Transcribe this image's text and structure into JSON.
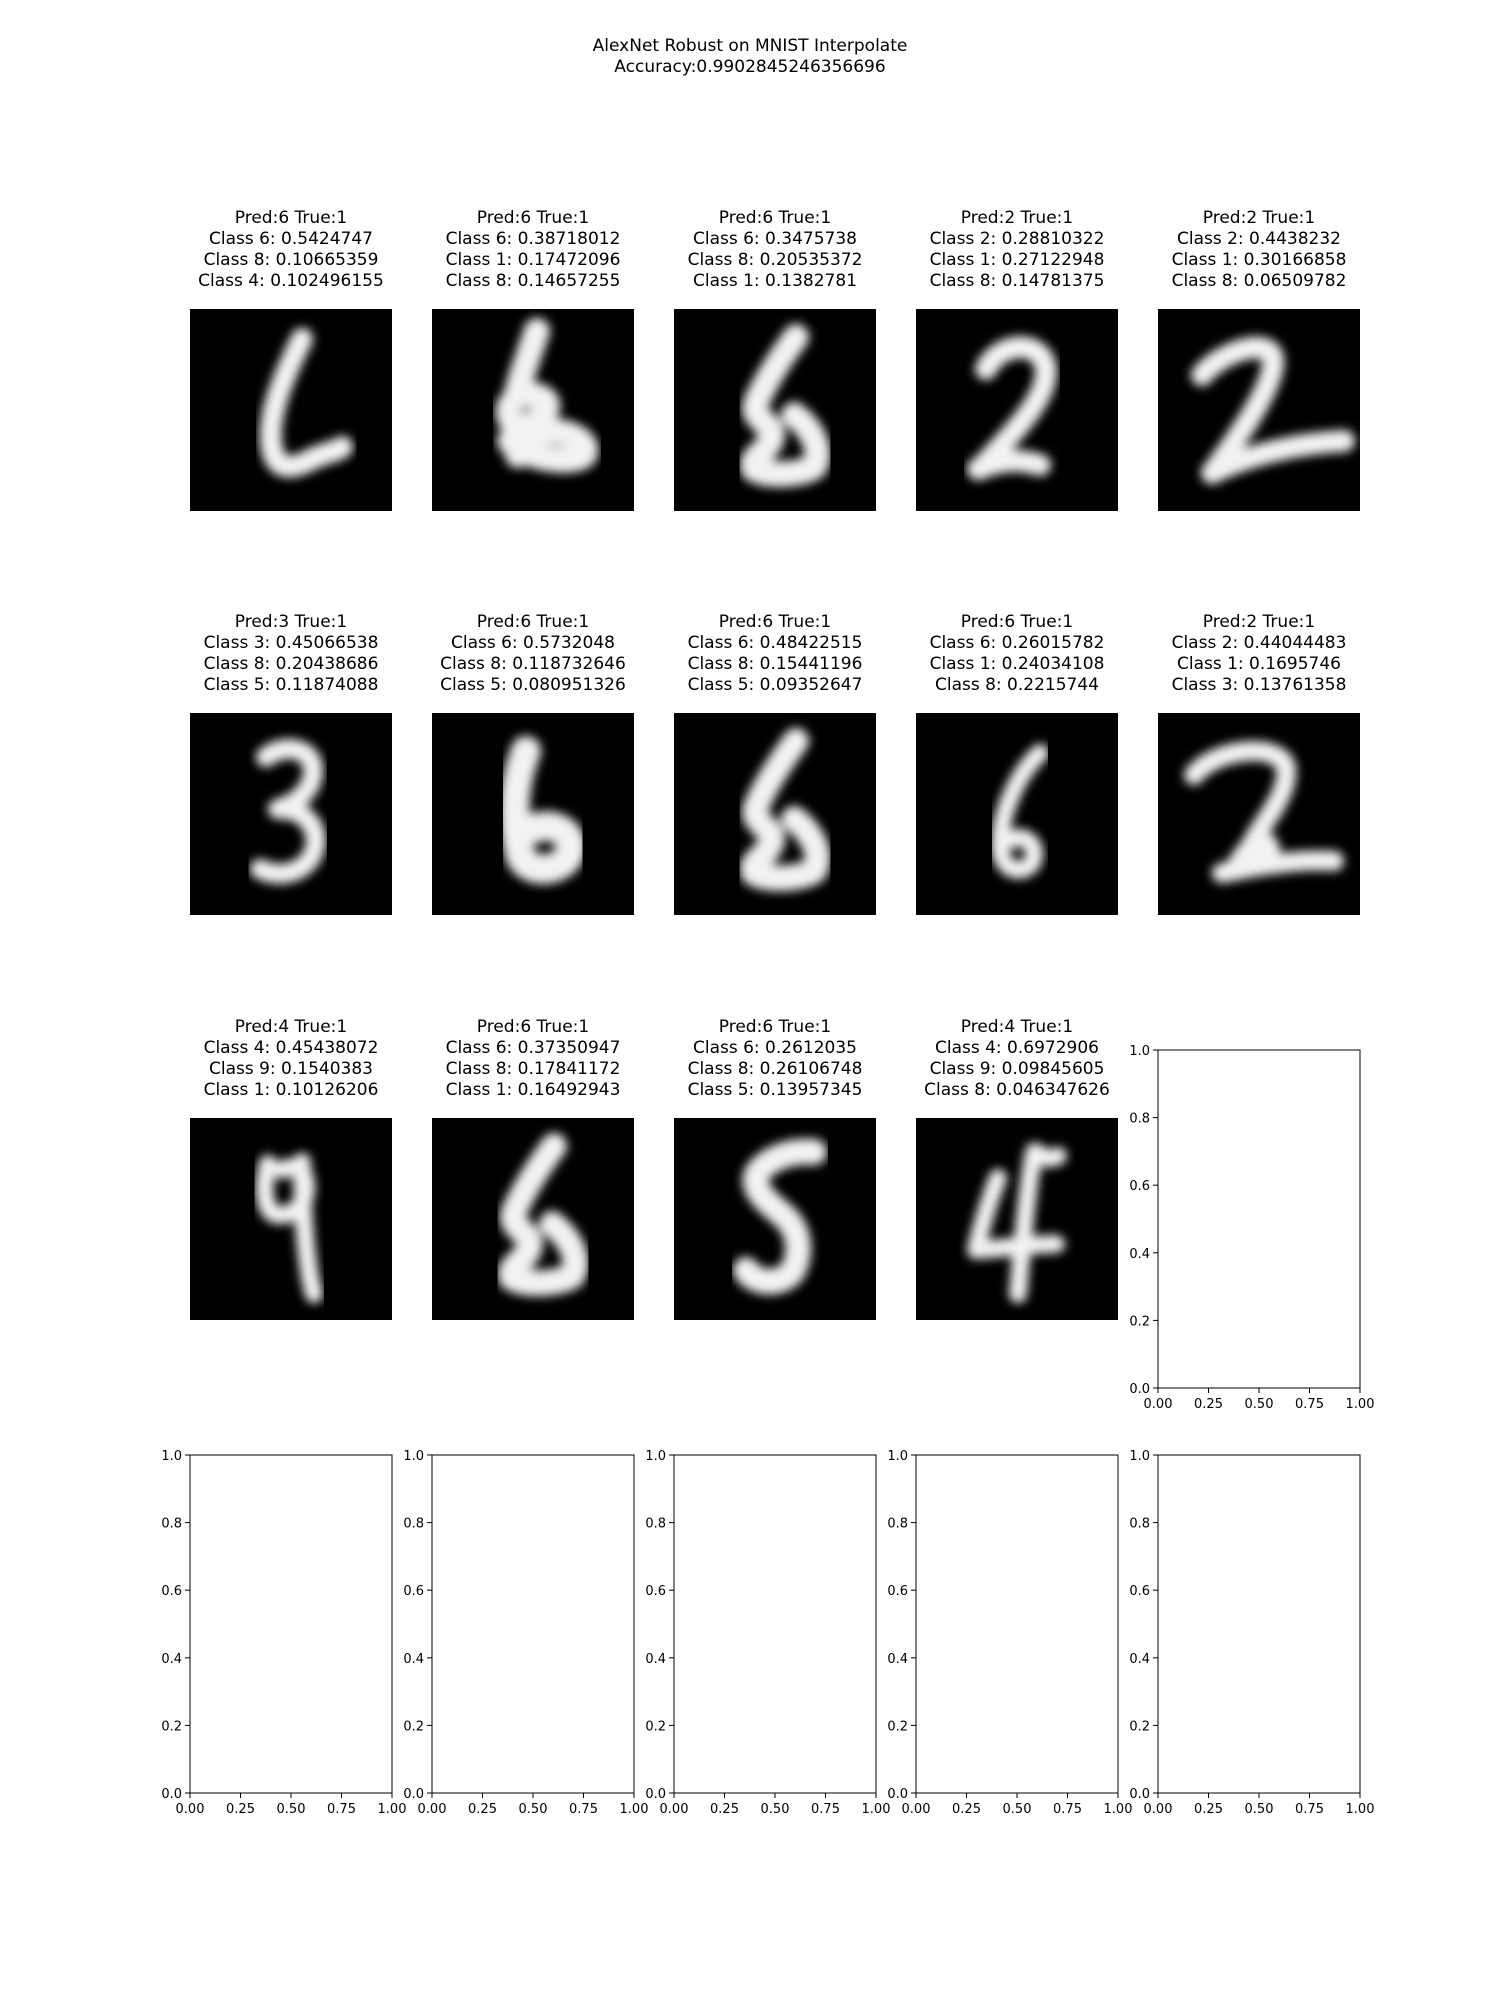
{
  "figure": {
    "title_line1": "AlexNet Robust on MNIST Interpolate",
    "title_line2": "Accuracy:0.9902845246356696"
  },
  "chart_data": {
    "type": "image_grid",
    "title": "AlexNet Robust on MNIST Interpolate\nAccuracy:0.9902845246356696",
    "grid": {
      "rows": 4,
      "cols": 5
    },
    "panels": [
      {
        "pred": "6",
        "true": "1",
        "top3": [
          [
            "6",
            "0.5424747"
          ],
          [
            "8",
            "0.10665359"
          ],
          [
            "4",
            "0.102496155"
          ]
        ],
        "digit_shape": "six-open"
      },
      {
        "pred": "6",
        "true": "1",
        "top3": [
          [
            "6",
            "0.38718012"
          ],
          [
            "1",
            "0.17472096"
          ],
          [
            "8",
            "0.14657255"
          ]
        ],
        "digit_shape": "loop-blob"
      },
      {
        "pred": "6",
        "true": "1",
        "top3": [
          [
            "6",
            "0.3475738"
          ],
          [
            "8",
            "0.20535372"
          ],
          [
            "1",
            "0.1382781"
          ]
        ],
        "digit_shape": "s-blob"
      },
      {
        "pred": "2",
        "true": "1",
        "top3": [
          [
            "2",
            "0.28810322"
          ],
          [
            "1",
            "0.27122948"
          ],
          [
            "8",
            "0.14781375"
          ]
        ],
        "digit_shape": "two-narrow"
      },
      {
        "pred": "2",
        "true": "1",
        "top3": [
          [
            "2",
            "0.4438232"
          ],
          [
            "1",
            "0.30166858"
          ],
          [
            "8",
            "0.06509782"
          ]
        ],
        "digit_shape": "two-wide"
      },
      {
        "pred": "3",
        "true": "1",
        "top3": [
          [
            "3",
            "0.45066538"
          ],
          [
            "8",
            "0.20438686"
          ],
          [
            "5",
            "0.11874088"
          ]
        ],
        "digit_shape": "three"
      },
      {
        "pred": "6",
        "true": "1",
        "top3": [
          [
            "6",
            "0.5732048"
          ],
          [
            "8",
            "0.118732646"
          ],
          [
            "5",
            "0.080951326"
          ]
        ],
        "digit_shape": "six-blob"
      },
      {
        "pred": "6",
        "true": "1",
        "top3": [
          [
            "6",
            "0.48422515"
          ],
          [
            "8",
            "0.15441196"
          ],
          [
            "5",
            "0.09352647"
          ]
        ],
        "digit_shape": "s-blob"
      },
      {
        "pred": "6",
        "true": "1",
        "top3": [
          [
            "6",
            "0.26015782"
          ],
          [
            "1",
            "0.24034108"
          ],
          [
            "8",
            "0.2215744"
          ]
        ],
        "digit_shape": "six-thin"
      },
      {
        "pred": "2",
        "true": "1",
        "top3": [
          [
            "2",
            "0.44044483"
          ],
          [
            "1",
            "0.1695746"
          ],
          [
            "3",
            "0.13761358"
          ]
        ],
        "digit_shape": "two-loop"
      },
      {
        "pred": "4",
        "true": "1",
        "top3": [
          [
            "4",
            "0.45438072"
          ],
          [
            "9",
            "0.1540383"
          ],
          [
            "1",
            "0.10126206"
          ]
        ],
        "digit_shape": "four-nine"
      },
      {
        "pred": "6",
        "true": "1",
        "top3": [
          [
            "6",
            "0.37350947"
          ],
          [
            "8",
            "0.17841172"
          ],
          [
            "1",
            "0.16492943"
          ]
        ],
        "digit_shape": "s-blob"
      },
      {
        "pred": "6",
        "true": "1",
        "top3": [
          [
            "6",
            "0.2612035"
          ],
          [
            "8",
            "0.26106748"
          ],
          [
            "5",
            "0.13957345"
          ]
        ],
        "digit_shape": "five-s"
      },
      {
        "pred": "4",
        "true": "1",
        "top3": [
          [
            "4",
            "0.6972906"
          ],
          [
            "9",
            "0.09845605"
          ],
          [
            "8",
            "0.046347626"
          ]
        ],
        "digit_shape": "four"
      }
    ],
    "empty_axes": {
      "count": 6,
      "xlim": [
        0,
        1
      ],
      "ylim": [
        0,
        1
      ],
      "xticks": [
        "0.00",
        "0.25",
        "0.50",
        "0.75",
        "1.00"
      ],
      "yticks": [
        "0.0",
        "0.2",
        "0.4",
        "0.6",
        "0.8",
        "1.0"
      ]
    }
  }
}
